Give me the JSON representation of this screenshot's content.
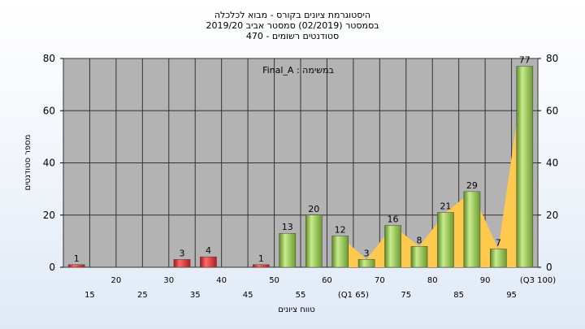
{
  "chart_data": {
    "type": "bar",
    "title_lines": [
      "היסטוגרמת ציונים בקורס - מבוא לכלכלה",
      "בסמסטר  (02/2019)  סמסטר אביב 2019/20",
      "סטודנטים רשומים - 470"
    ],
    "annotation": "במשימה : Final_A",
    "ylabel": "מספר סטודנטים",
    "xlabel": "טווח ציונים",
    "ylim": [
      0,
      80
    ],
    "yticks": [
      0,
      20,
      40,
      60,
      80
    ],
    "categories": [
      "15",
      "20",
      "25",
      "30",
      "35",
      "40",
      "45",
      "50",
      "55",
      "60",
      "(Q1 65)",
      "70",
      "75",
      "80",
      "85",
      "90",
      "95",
      "(Q3 100)"
    ],
    "values": [
      1,
      0,
      0,
      0,
      3,
      4,
      0,
      1,
      13,
      20,
      12,
      3,
      16,
      8,
      21,
      29,
      7,
      77
    ],
    "bar_colors": [
      "#d9252b",
      "#d9252b",
      "#d9252b",
      "#d9252b",
      "#d9252b",
      "#d9252b",
      "#d9252b",
      "#d9252b",
      "#8dc63f",
      "#8dc63f",
      "#8dc63f",
      "#8dc63f",
      "#8dc63f",
      "#8dc63f",
      "#8dc63f",
      "#8dc63f",
      "#8dc63f",
      "#8dc63f"
    ],
    "area_from_category": "(Q1 65)",
    "area_color": "#ffc94d",
    "plot_bg": "#b3b3b3",
    "grid": true
  }
}
